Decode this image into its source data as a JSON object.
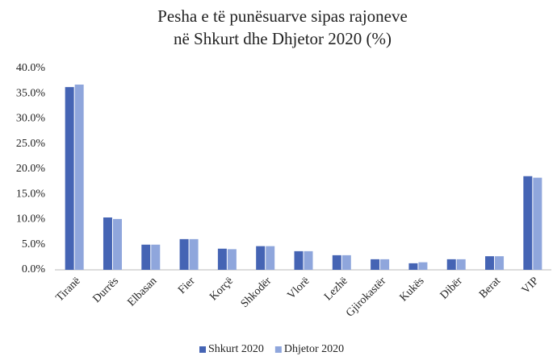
{
  "chart_data": {
    "type": "bar",
    "title": [
      "Pesha e të punësuarve sipas rajoneve",
      "në Shkurt dhe Dhjetor 2020 (%)"
    ],
    "categories": [
      "Tiranë",
      "Durrës",
      "Elbasan",
      "Fier",
      "Korçë",
      "Shkodër",
      "Vlorë",
      "Lezhë",
      "Gjirokastër",
      "Kukës",
      "Dibër",
      "Berat",
      "VIP"
    ],
    "series": [
      {
        "name": "Shkurt 2020",
        "color": "#4564b4",
        "values": [
          36.3,
          10.4,
          5.0,
          6.1,
          4.2,
          4.7,
          3.7,
          2.9,
          2.1,
          1.3,
          2.1,
          2.7,
          18.6
        ]
      },
      {
        "name": "Dhjetor 2020",
        "color": "#8fa6dc",
        "values": [
          36.8,
          10.1,
          5.0,
          6.1,
          4.1,
          4.7,
          3.7,
          2.9,
          2.1,
          1.5,
          2.1,
          2.7,
          18.3
        ]
      }
    ],
    "ylim": [
      0,
      40
    ],
    "yticks": [
      {
        "value": 0,
        "label": "0.0%"
      },
      {
        "value": 5,
        "label": "5.0%"
      },
      {
        "value": 10,
        "label": "10.0%"
      },
      {
        "value": 15,
        "label": "15.0%"
      },
      {
        "value": 20,
        "label": "20.0%"
      },
      {
        "value": 25,
        "label": "25.0%"
      },
      {
        "value": 30,
        "label": "30.0%"
      },
      {
        "value": 35,
        "label": "35.0%"
      },
      {
        "value": 40,
        "label": "40.0%"
      }
    ],
    "grid": false,
    "legend": "bottom"
  }
}
